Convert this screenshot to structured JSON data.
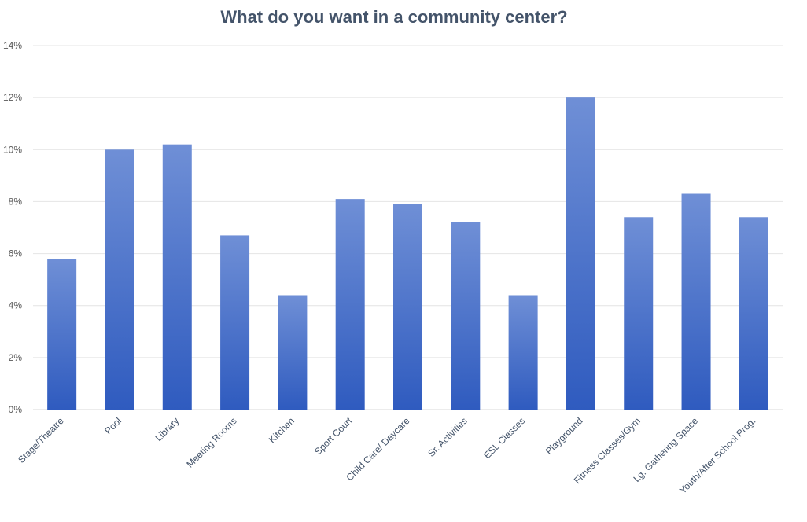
{
  "chart_data": {
    "type": "bar",
    "title": "What do you want in a community center?",
    "xlabel": "",
    "ylabel": "",
    "categories": [
      "Stage/Theatre",
      "Pool",
      "Library",
      "Meeting Rooms",
      "Kitchen",
      "Sport Court",
      "Child Care/ Daycare",
      "Sr. Activities",
      "ESL Classes",
      "Playground",
      "Fitness Classes/Gym",
      "Lg. Gathering Space",
      "Youth/After School Prog."
    ],
    "series": [
      {
        "values": [
          5.8,
          10.0,
          10.2,
          6.7,
          4.4,
          8.1,
          7.9,
          7.2,
          4.4,
          12.0,
          7.4,
          8.3,
          7.4
        ]
      }
    ],
    "ylim": [
      0,
      14
    ],
    "yticks": [
      "0%",
      "2%",
      "4%",
      "6%",
      "8%",
      "10%",
      "12%",
      "14%"
    ],
    "grid": true,
    "legend": "none",
    "colors": {
      "bar_top": "#6f8fd6",
      "bar_bottom": "#2f5bbf",
      "grid": "#e4e4e4",
      "title": "#44546a",
      "axis_text": "#595959"
    }
  }
}
